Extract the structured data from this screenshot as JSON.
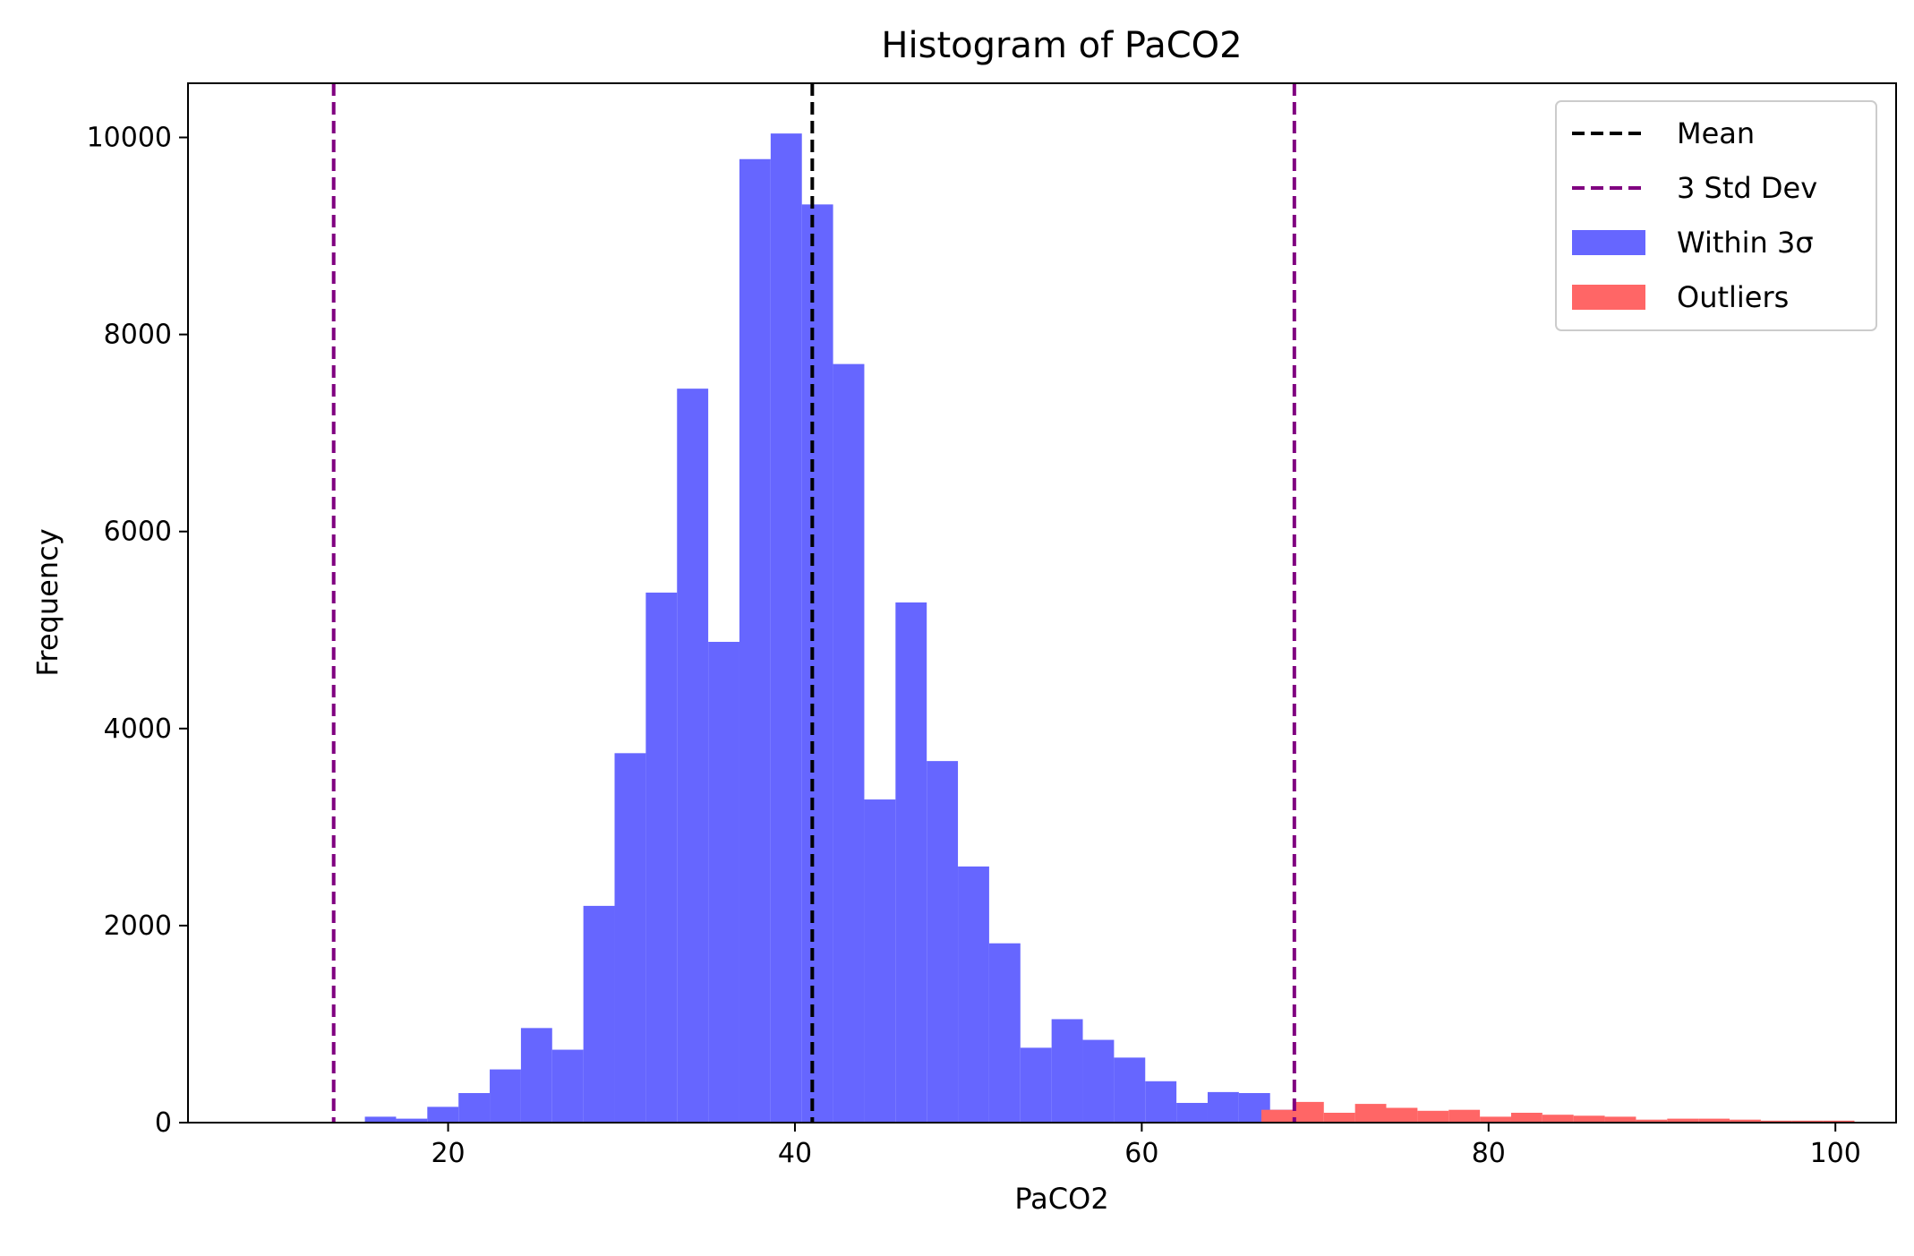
{
  "chart_data": {
    "type": "bar",
    "title": "Histogram of PaCO2",
    "xlabel": "PaCO2",
    "ylabel": "Frequency",
    "xlim": [
      5,
      103.5
    ],
    "ylim": [
      0,
      10550
    ],
    "xticks": [
      20,
      40,
      60,
      80,
      100
    ],
    "yticks": [
      0,
      2000,
      4000,
      6000,
      8000,
      10000
    ],
    "grid": false,
    "legend_position": "top-right",
    "bin_width": 1.8,
    "mean": 41.0,
    "sigma_lines": [
      13.4,
      68.8
    ],
    "series": [
      {
        "name": "Within 3σ",
        "color": "#6666ff",
        "bin_start": 13.4,
        "values": [
          0,
          60,
          40,
          160,
          300,
          540,
          960,
          740,
          2200,
          3750,
          5380,
          7450,
          4880,
          9780,
          10040,
          9320,
          7700,
          3280,
          5280,
          3670,
          2600,
          1820,
          760,
          1050,
          840,
          660,
          420,
          200,
          310,
          300,
          130
        ]
      },
      {
        "name": "Outliers",
        "color": "#ff6666",
        "bin_start": 66.9,
        "values": [
          130,
          210,
          100,
          190,
          150,
          120,
          130,
          60,
          100,
          80,
          70,
          60,
          30,
          40,
          40,
          30,
          20,
          20,
          20
        ]
      }
    ],
    "legend": [
      {
        "label": "Mean",
        "kind": "line",
        "color": "#000000"
      },
      {
        "label": "3 Std Dev",
        "kind": "line",
        "color": "#800080"
      },
      {
        "label": "Within 3σ",
        "kind": "patch",
        "color": "#6666ff"
      },
      {
        "label": "Outliers",
        "kind": "patch",
        "color": "#ff6666"
      }
    ]
  }
}
